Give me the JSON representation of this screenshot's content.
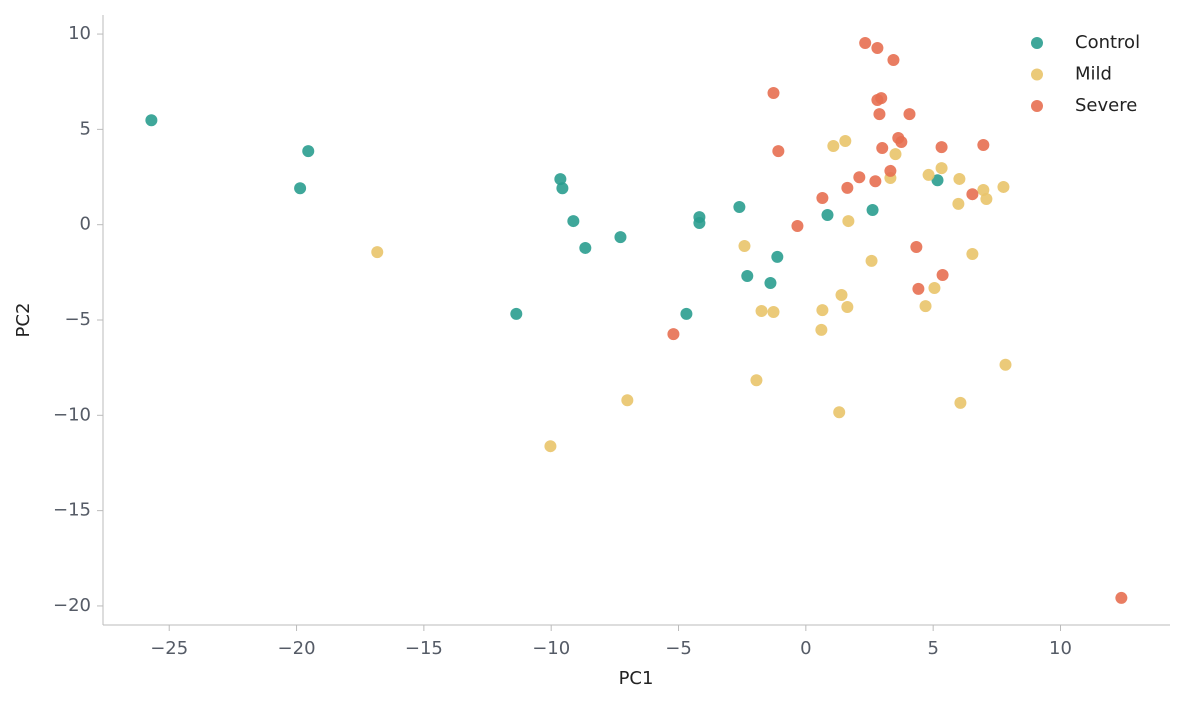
{
  "chart_data": {
    "type": "scatter",
    "x_label": "PC1",
    "y_label": "PC2",
    "xlim": [
      -27.6,
      14.3
    ],
    "ylim": [
      -21.0,
      11.0
    ],
    "xticks": [
      {
        "value": -25,
        "label": "−25"
      },
      {
        "value": -20,
        "label": "−20"
      },
      {
        "value": -15,
        "label": "−15"
      },
      {
        "value": -10,
        "label": "−10"
      },
      {
        "value": -5,
        "label": "−5"
      },
      0,
      5,
      10
    ],
    "yticks": [
      {
        "value": -20,
        "label": "−20"
      },
      {
        "value": -15,
        "label": "−15"
      },
      {
        "value": -10,
        "label": "−10"
      },
      {
        "value": -5,
        "label": "−5"
      },
      0,
      5,
      10
    ],
    "legend": "upper right",
    "series": [
      {
        "name": "Control",
        "color": "#2a9d8f",
        "x": [
          -25.7,
          -19.54,
          -19.86,
          -9.64,
          -9.56,
          -9.13,
          -8.66,
          -7.28,
          -11.37,
          -4.69,
          -4.18,
          -4.18,
          -2.61,
          -2.3,
          -1.39,
          -1.12,
          0.85,
          2.62,
          5.17
        ],
        "values": [
          5.48,
          3.86,
          1.91,
          2.39,
          1.91,
          0.19,
          -1.22,
          -0.65,
          -4.68,
          -4.68,
          0.4,
          0.09,
          0.93,
          -2.69,
          -3.06,
          -1.69,
          0.51,
          0.77,
          2.33
        ]
      },
      {
        "name": "Mild",
        "color": "#e9c46a",
        "x": [
          -16.83,
          -10.03,
          -7.01,
          -2.41,
          -1.94,
          -1.74,
          -1.27,
          0.65,
          0.61,
          1.08,
          1.55,
          1.4,
          1.63,
          1.67,
          1.31,
          2.58,
          3.32,
          3.52,
          4.82,
          4.7,
          5.05,
          5.33,
          6.03,
          5.99,
          6.07,
          6.54,
          6.97,
          7.09,
          7.76,
          7.84
        ],
        "values": [
          -1.44,
          -11.62,
          -9.21,
          -1.12,
          -8.16,
          -4.53,
          -4.58,
          -4.48,
          -5.52,
          4.13,
          4.39,
          -3.69,
          -4.32,
          0.19,
          -9.84,
          -1.9,
          2.45,
          3.7,
          2.61,
          -4.27,
          -3.32,
          2.97,
          2.4,
          1.09,
          -9.35,
          -1.54,
          1.82,
          1.35,
          1.98,
          -7.35
        ]
      },
      {
        "name": "Severe",
        "color": "#e76f51",
        "x": [
          -5.2,
          -1.27,
          -1.08,
          -0.33,
          0.65,
          1.63,
          2.1,
          2.33,
          2.81,
          2.73,
          2.81,
          2.96,
          2.89,
          3.0,
          3.32,
          3.44,
          3.63,
          3.75,
          4.07,
          4.34,
          4.42,
          5.33,
          5.37,
          6.54,
          6.97,
          12.39
        ],
        "values": [
          -5.74,
          6.91,
          3.86,
          -0.07,
          1.4,
          1.93,
          2.49,
          9.53,
          9.27,
          2.28,
          6.54,
          6.64,
          5.8,
          4.02,
          2.82,
          8.64,
          4.55,
          4.34,
          5.8,
          -1.17,
          -3.37,
          4.07,
          -2.64,
          1.6,
          4.18,
          -19.58
        ]
      }
    ]
  }
}
